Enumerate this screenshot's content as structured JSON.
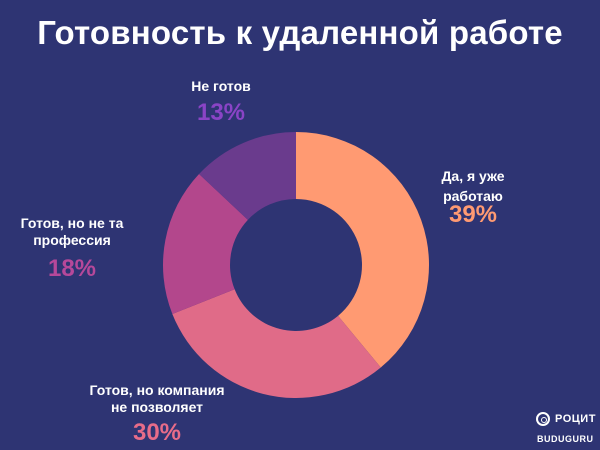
{
  "chart_data": {
    "type": "pie",
    "title": "Готовность к удаленной работе",
    "donut": true,
    "start_angle_deg": 0,
    "slices": [
      {
        "label_lines": [
          "Да, я уже",
          "работаю"
        ],
        "value": 39,
        "value_text": "39%",
        "color": "#ff9a72",
        "value_color": "#ff9a72"
      },
      {
        "label_lines": [
          "Готов, но компания",
          "не позволяет"
        ],
        "value": 30,
        "value_text": "30%",
        "color": "#e06b88",
        "value_color": "#e86c89"
      },
      {
        "label_lines": [
          "Готов, но не та",
          "профессия"
        ],
        "value": 18,
        "value_text": "18%",
        "color": "#b3478c",
        "value_color": "#b6489a"
      },
      {
        "label_lines": [
          "Не готов"
        ],
        "value": 13,
        "value_text": "13%",
        "color": "#6a3b8d",
        "value_color": "#8a44c6"
      }
    ]
  },
  "logo": {
    "name": "РОЦИТ",
    "icon": "ring-logo-icon"
  },
  "brand": "BUDUGURU",
  "colors": {
    "background": "#2e3473",
    "hole": "#2e3473"
  }
}
